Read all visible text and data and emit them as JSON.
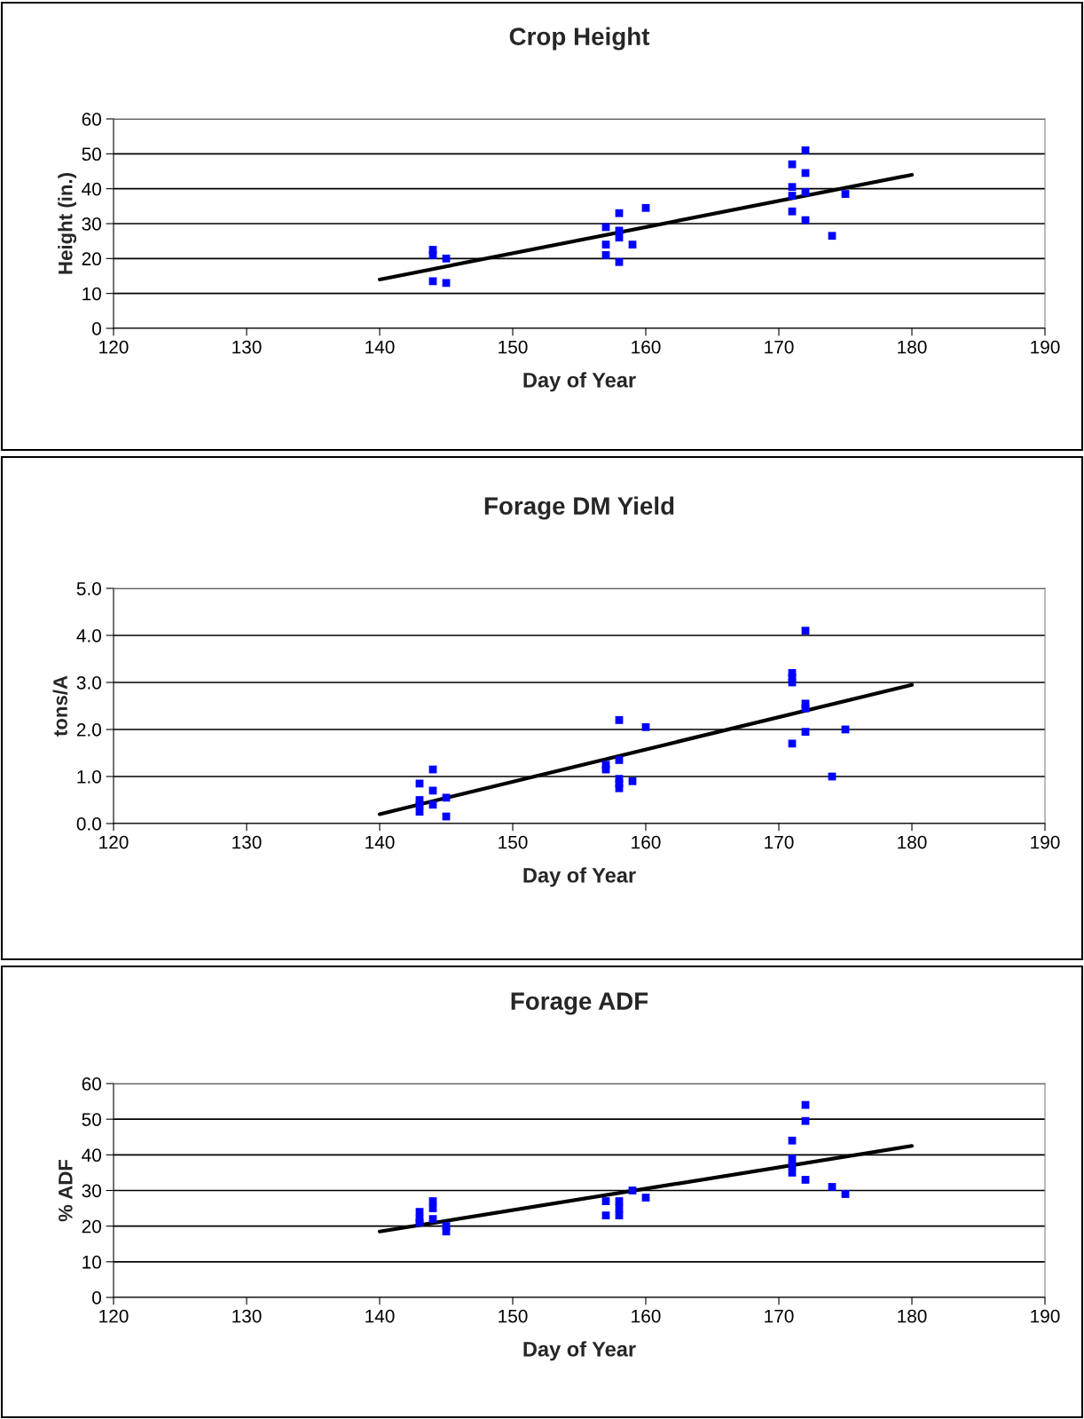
{
  "chart_data": [
    {
      "type": "scatter",
      "title": "Crop Height",
      "xlabel": "Day of Year",
      "ylabel": "Height (in.)",
      "xlim": [
        120,
        190
      ],
      "xticks": [
        120,
        130,
        140,
        150,
        160,
        170,
        180,
        190
      ],
      "ylim": [
        0,
        60
      ],
      "yticks": [
        0,
        10,
        20,
        30,
        40,
        50,
        60
      ],
      "grid": "y",
      "series": [
        {
          "marker": "square",
          "color": "#0000ff",
          "x": [
            144,
            144,
            144,
            145,
            145,
            157,
            157,
            157,
            158,
            158,
            158,
            158,
            159,
            160,
            171,
            171,
            171,
            171,
            172,
            172,
            172,
            172,
            174,
            175
          ],
          "values": [
            22.5,
            21,
            13.5,
            20,
            13,
            29,
            24,
            21,
            33,
            28,
            26,
            19,
            24,
            34.5,
            47,
            40.5,
            38,
            33.5,
            51,
            44.5,
            39,
            31,
            26.5,
            38.5
          ]
        },
        {
          "type": "line",
          "marker": "none",
          "color": "#000000",
          "x": [
            140,
            180
          ],
          "values": [
            14,
            44
          ]
        }
      ]
    },
    {
      "type": "scatter",
      "title": "Forage DM Yield",
      "xlabel": "Day of Year",
      "ylabel": "tons/A",
      "xlim": [
        120,
        190
      ],
      "xticks": [
        120,
        130,
        140,
        150,
        160,
        170,
        180,
        190
      ],
      "ylim": [
        0,
        5
      ],
      "yticks": [
        {
          "value": 0,
          "label": "0.0"
        },
        {
          "value": 1,
          "label": "1.0"
        },
        {
          "value": 2,
          "label": "2.0"
        },
        {
          "value": 3,
          "label": "3.0"
        },
        {
          "value": 4,
          "label": "4.0"
        },
        {
          "value": 5,
          "label": "5.0"
        }
      ],
      "grid": "y",
      "series": [
        {
          "marker": "square",
          "color": "#0000ff",
          "x": [
            143,
            143,
            143,
            143,
            144,
            144,
            144,
            145,
            145,
            157,
            157,
            158,
            158,
            158,
            158,
            158,
            159,
            160,
            171,
            171,
            171,
            171,
            172,
            172,
            172,
            172,
            174,
            175
          ],
          "values": [
            0.85,
            0.5,
            0.4,
            0.25,
            1.15,
            0.7,
            0.4,
            0.55,
            0.15,
            1.25,
            1.15,
            2.2,
            1.35,
            0.95,
            0.85,
            0.75,
            0.9,
            2.05,
            3.2,
            3.1,
            3.0,
            1.7,
            4.1,
            2.55,
            2.45,
            1.95,
            1.0,
            2.0
          ]
        },
        {
          "type": "line",
          "marker": "none",
          "color": "#000000",
          "x": [
            140,
            180
          ],
          "values": [
            0.2,
            2.95
          ]
        }
      ]
    },
    {
      "type": "scatter",
      "title": "Forage ADF",
      "xlabel": "Day of Year",
      "ylabel": "% ADF",
      "xlim": [
        120,
        190
      ],
      "xticks": [
        120,
        130,
        140,
        150,
        160,
        170,
        180,
        190
      ],
      "ylim": [
        0,
        60
      ],
      "yticks": [
        0,
        10,
        20,
        30,
        40,
        50,
        60
      ],
      "grid": "y",
      "series": [
        {
          "marker": "square",
          "color": "#0000ff",
          "x": [
            143,
            143,
            143,
            144,
            144,
            144,
            145,
            145,
            157,
            157,
            158,
            158,
            158,
            159,
            160,
            171,
            171,
            171,
            171,
            172,
            172,
            172,
            174,
            175
          ],
          "values": [
            24,
            22,
            21,
            27,
            25,
            22,
            20,
            18.5,
            27,
            23,
            27,
            25,
            23,
            30,
            28,
            44,
            39,
            37,
            35,
            54,
            49.5,
            33,
            31,
            29
          ]
        },
        {
          "type": "line",
          "marker": "none",
          "color": "#000000",
          "x": [
            140,
            180
          ],
          "values": [
            18.5,
            42.5
          ]
        }
      ]
    }
  ]
}
